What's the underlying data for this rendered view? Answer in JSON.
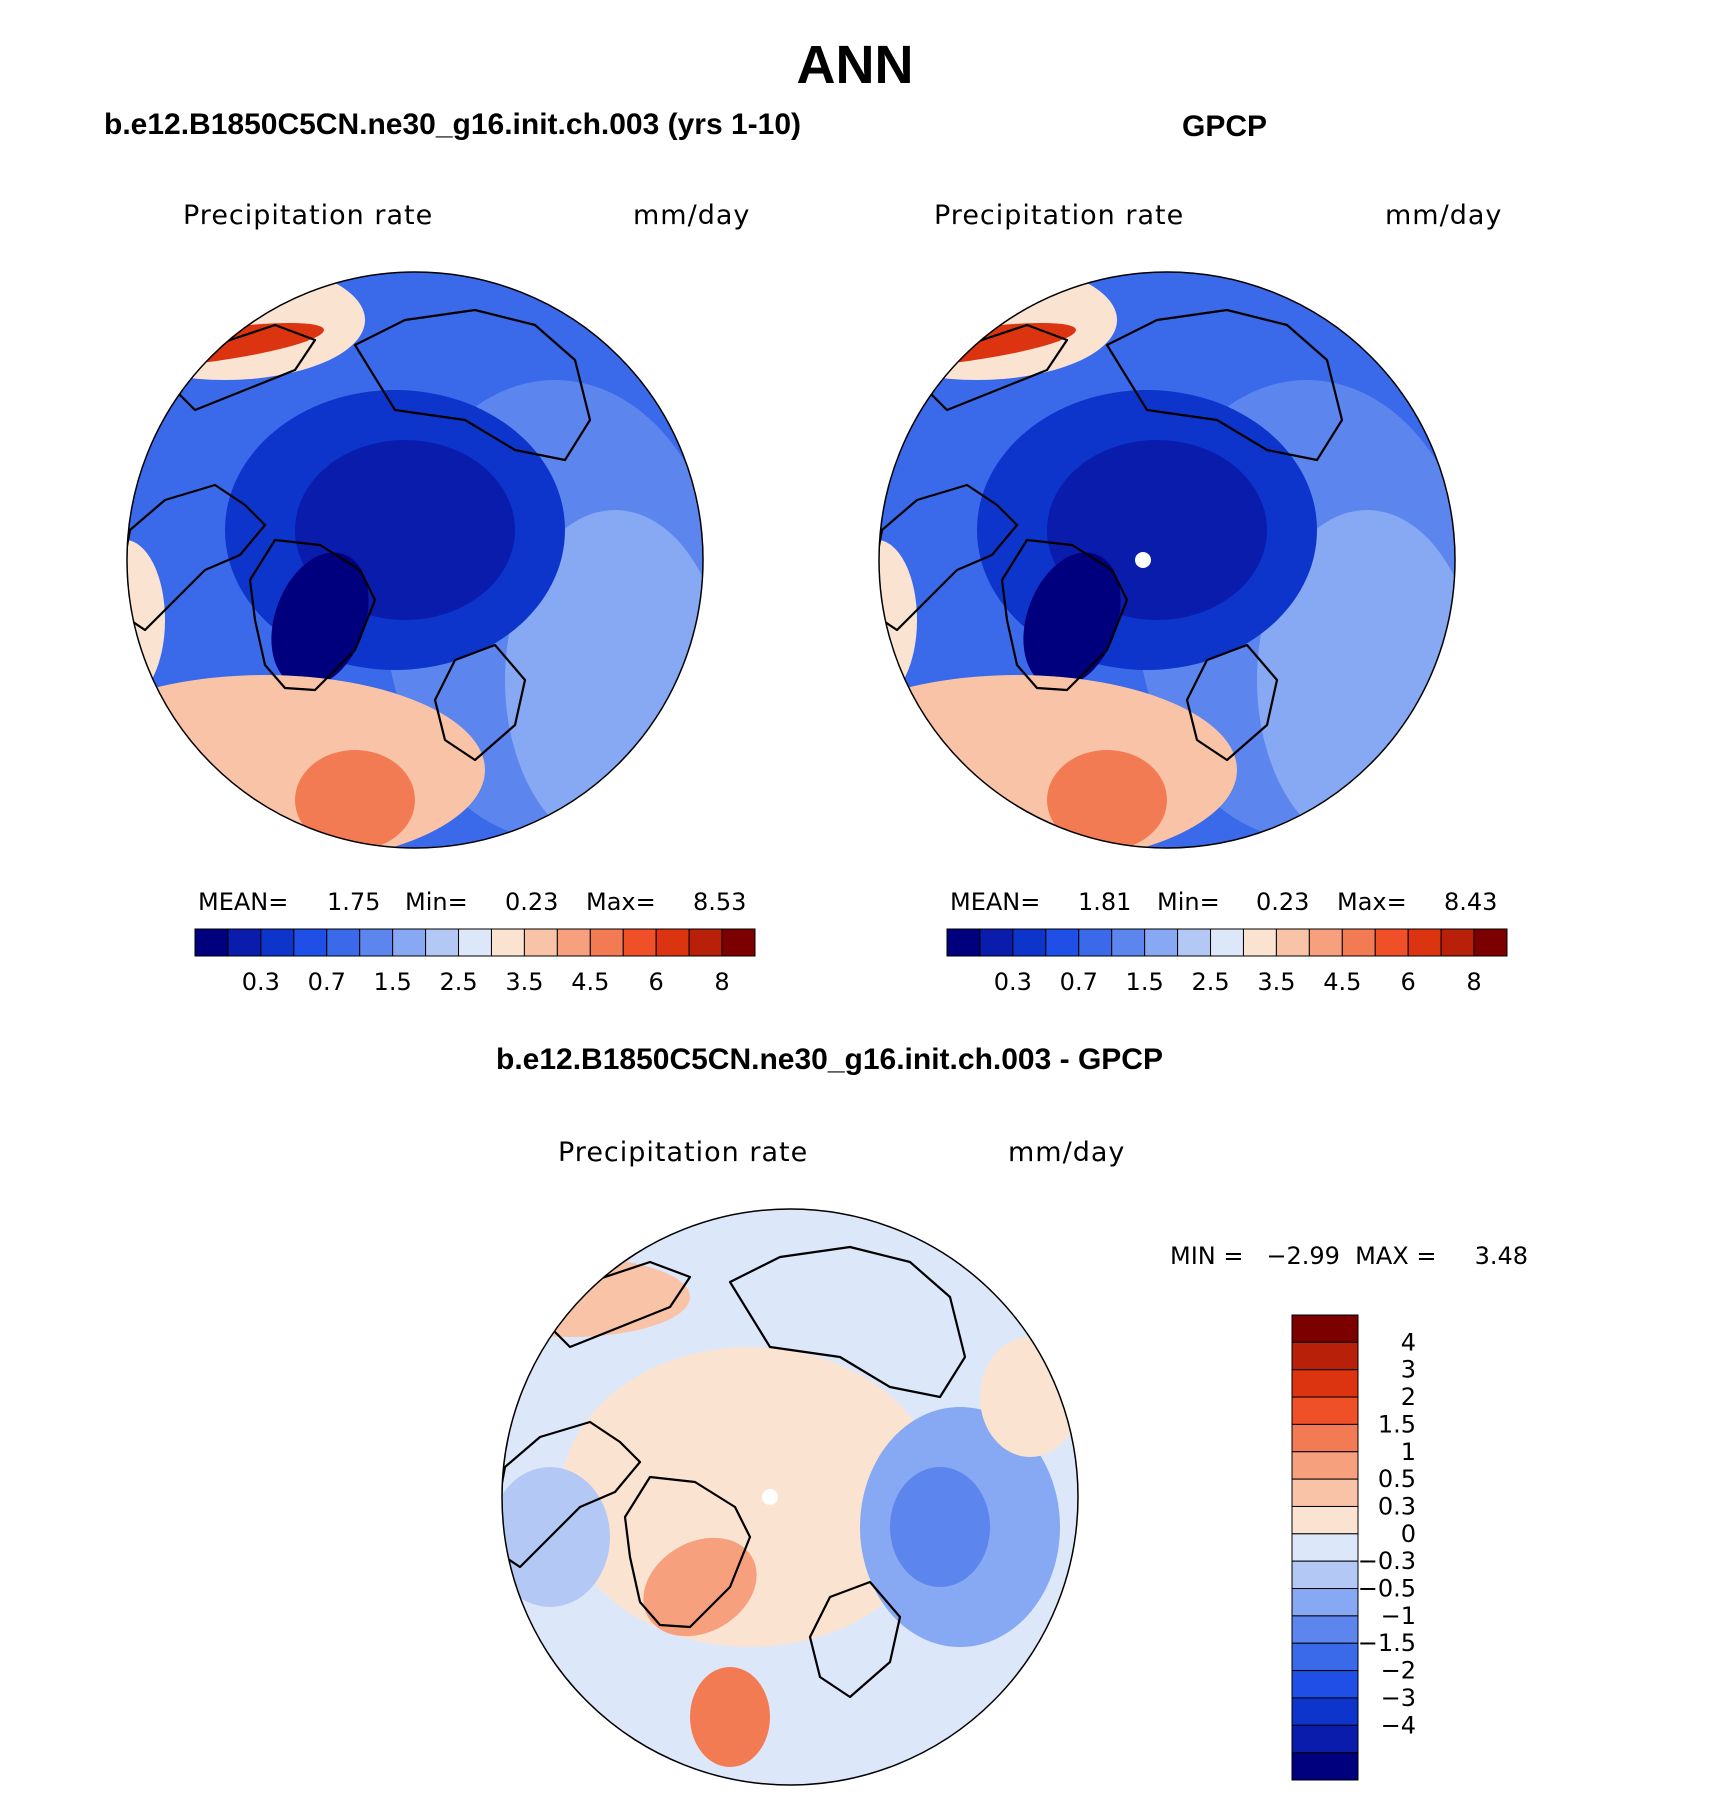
{
  "header": {
    "title": "ANN"
  },
  "panels": [
    {
      "id": "model",
      "title": "b.e12.B1850C5CN.ne30_g16.init.ch.003 (yrs 1-10)",
      "variable": "Precipitation rate",
      "units": "mm/day",
      "mean_label": "MEAN=",
      "mean": "1.75",
      "min_label": "Min=",
      "min": "0.23",
      "max_label": "Max=",
      "max": "8.53"
    },
    {
      "id": "obs",
      "title": "GPCP",
      "variable": "Precipitation rate",
      "units": "mm/day",
      "mean_label": "MEAN=",
      "mean": "1.81",
      "min_label": "Min=",
      "min": "0.23",
      "max_label": "Max=",
      "max": "8.43"
    },
    {
      "id": "diff",
      "title": "b.e12.B1850C5CN.ne30_g16.init.ch.003 - GPCP",
      "variable": "Precipitation rate",
      "units": "mm/day",
      "minmax_text": "MIN =   −2.99  MAX =     3.48"
    }
  ],
  "chart_data": [
    {
      "type": "heatmap",
      "title": "b.e12.B1850C5CN.ne30_g16.init.ch.003 (yrs 1-10)",
      "projection": "north polar stereographic",
      "units": "mm/day",
      "colorbar_levels": [
        0.2,
        0.3,
        0.5,
        0.7,
        1,
        1.5,
        2,
        2.5,
        3,
        3.5,
        4,
        4.5,
        5,
        6,
        7,
        8
      ],
      "colorbar_tick_labels": [
        "0.3",
        "0.7",
        "1.5",
        "2.5",
        "3.5",
        "4.5",
        "6",
        "8"
      ],
      "colors": [
        "#00007f",
        "#0a1cab",
        "#0d35cc",
        "#1f4fe6",
        "#3a6ae9",
        "#5c86ee",
        "#87a8f2",
        "#b3c8f5",
        "#dde7fa",
        "#fbe3d1",
        "#f8c3a7",
        "#f6a07d",
        "#f37b54",
        "#ef5028",
        "#dc3410",
        "#b8200a",
        "#7d0000"
      ],
      "stats": {
        "mean": 1.75,
        "min": 0.23,
        "max": 8.53
      }
    },
    {
      "type": "heatmap",
      "title": "GPCP",
      "projection": "north polar stereographic",
      "units": "mm/day",
      "colorbar_levels": [
        0.2,
        0.3,
        0.5,
        0.7,
        1,
        1.5,
        2,
        2.5,
        3,
        3.5,
        4,
        4.5,
        5,
        6,
        7,
        8
      ],
      "colorbar_tick_labels": [
        "0.3",
        "0.7",
        "1.5",
        "2.5",
        "3.5",
        "4.5",
        "6",
        "8"
      ],
      "colors": [
        "#00007f",
        "#0a1cab",
        "#0d35cc",
        "#1f4fe6",
        "#3a6ae9",
        "#5c86ee",
        "#87a8f2",
        "#b3c8f5",
        "#dde7fa",
        "#fbe3d1",
        "#f8c3a7",
        "#f6a07d",
        "#f37b54",
        "#ef5028",
        "#dc3410",
        "#b8200a",
        "#7d0000"
      ],
      "stats": {
        "mean": 1.81,
        "min": 0.23,
        "max": 8.43
      }
    },
    {
      "type": "heatmap",
      "title": "b.e12.B1850C5CN.ne30_g16.init.ch.003 - GPCP",
      "projection": "north polar stereographic",
      "units": "mm/day",
      "colorbar_levels": [
        -4,
        -3,
        -2,
        -1.5,
        -1,
        -0.5,
        -0.3,
        0,
        0.3,
        0.5,
        1,
        1.5,
        2,
        3,
        4
      ],
      "colorbar_tick_labels": [
        "4",
        "3",
        "2",
        "1.5",
        "1",
        "0.5",
        "0.3",
        "0",
        "−0.3",
        "−0.5",
        "−1",
        "−1.5",
        "−2",
        "−3",
        "−4"
      ],
      "colors": [
        "#00007f",
        "#0a1cab",
        "#0d35cc",
        "#1f4fe6",
        "#3a6ae9",
        "#5c86ee",
        "#87a8f2",
        "#b3c8f5",
        "#dde7fa",
        "#fbe3d1",
        "#f8c3a7",
        "#f6a07d",
        "#f37b54",
        "#ef5028",
        "#dc3410",
        "#b8200a",
        "#7d0000"
      ],
      "stats": {
        "min": -2.99,
        "max": 3.48
      }
    }
  ]
}
